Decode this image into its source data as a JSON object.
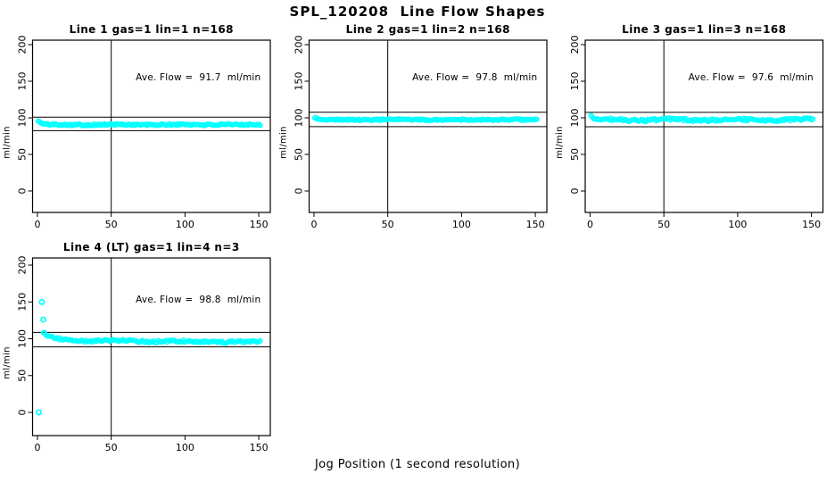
{
  "page": {
    "main_title": "SPL_120208  Line Flow Shapes",
    "x_axis_label": "Jog Position (1 second resolution)"
  },
  "chart_data": {
    "type": "scatter",
    "title": "SPL_120208  Line Flow Shapes",
    "xlabel": "Jog Position (1 second resolution)",
    "ylabel": "ml/min",
    "point_color": "#00ffff",
    "line_color": "#000000",
    "grid": false,
    "legend_position": "none",
    "x_ticks": [
      0,
      50,
      100,
      150
    ],
    "y_ticks": [
      0,
      50,
      100,
      150,
      200
    ],
    "xlim": [
      -3.3,
      157.8
    ],
    "vline_x": 50,
    "subplots": [
      {
        "title": "Line 1 gas=1 lin=1 n=168",
        "annotation": "Ave. Flow =  91.7  ml/min",
        "ave_flow": 91.7,
        "n": 168,
        "ref_upper": 100.9,
        "ref_lower": 82.5,
        "ylim": [
          -29.3,
          206.1
        ],
        "ann": {
          "x": 109,
          "y": 151
        },
        "series": {
          "n": 168,
          "x_start": 0.5,
          "x_end": 151,
          "base": 90.6,
          "jump": 5.5,
          "decay": 2.2,
          "slope": 0,
          "wave": 0.25,
          "noise": 1.2,
          "seed": 101
        },
        "outliers": []
      },
      {
        "title": "Line 2 gas=1 lin=2 n=168",
        "annotation": "Ave. Flow =  97.8  ml/min",
        "ave_flow": 97.8,
        "n": 168,
        "ref_upper": 107.6,
        "ref_lower": 88.0,
        "ylim": [
          -29.3,
          206.1
        ],
        "ann": {
          "x": 109,
          "y": 151
        },
        "series": {
          "n": 168,
          "x_start": 0.5,
          "x_end": 151,
          "base": 97.4,
          "jump": 3.2,
          "decay": 2.0,
          "slope": 0,
          "wave": 0.25,
          "noise": 1.0,
          "seed": 202
        },
        "outliers": []
      },
      {
        "title": "Line 3 gas=1 lin=3 n=168",
        "annotation": "Ave. Flow =  97.6  ml/min",
        "ave_flow": 97.6,
        "n": 168,
        "ref_upper": 107.4,
        "ref_lower": 87.8,
        "ylim": [
          -29.3,
          206.1
        ],
        "ann": {
          "x": 109,
          "y": 151
        },
        "series": {
          "n": 168,
          "x_start": 0.5,
          "x_end": 151,
          "base": 97.2,
          "jump": 4.5,
          "decay": 2.0,
          "slope": 0,
          "wave": 0.9,
          "noise": 1.7,
          "seed": 303
        },
        "outliers": []
      },
      {
        "title": "Line 4 (LT) gas=1 lin=4 n=3",
        "annotation": "Ave. Flow =  98.8  ml/min",
        "ave_flow": 98.8,
        "n": 3,
        "ref_upper": 108.7,
        "ref_lower": 88.9,
        "ylim": [
          -31.5,
          209.7
        ],
        "ann": {
          "x": 109,
          "y": 149
        },
        "series": {
          "n": 148,
          "x_start": 4,
          "x_end": 151,
          "base": 97.8,
          "jump": 10.5,
          "decay": 6,
          "slope": -0.016,
          "wave": 0.7,
          "noise": 1.5,
          "seed": 404
        },
        "outliers": [
          {
            "x": 3,
            "y": 150
          },
          {
            "x": 4,
            "y": 126
          },
          {
            "x": 1,
            "y": 0
          }
        ]
      }
    ]
  }
}
